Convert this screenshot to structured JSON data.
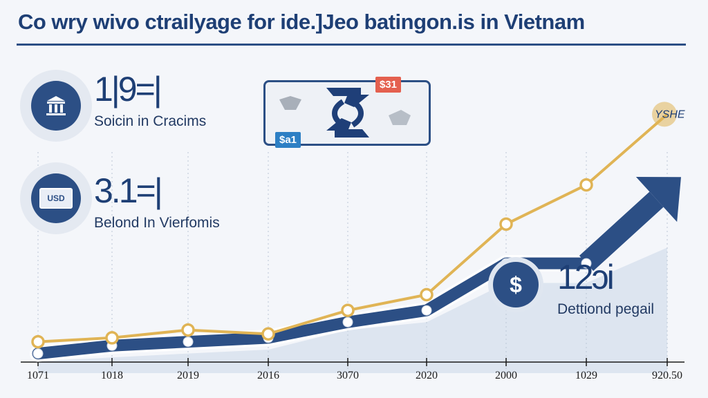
{
  "header": {
    "title": "Co wry wivo ctrailyage for ide.]Jeo batingon.is in Vietnam"
  },
  "stats": [
    {
      "value": "1|9=|",
      "caption": "Soicin in Cracims",
      "icon": "bank-icon"
    },
    {
      "value": "3.1=|",
      "caption": "Belond In Vierfomis",
      "icon": "usd-banknote-icon",
      "icon_text": "USD"
    },
    {
      "value": "12ɔi",
      "caption": "Dettiond pegail",
      "icon": "dollar-coin-icon",
      "icon_text": "$"
    }
  ],
  "exchange_card": {
    "badge_top": "$31",
    "badge_bottom": "$a1",
    "icon": "exchange-arrows-icon"
  },
  "colors": {
    "title": "#1e3f75",
    "navy": "#2c4f85",
    "gold": "#e0b455",
    "area": "#dde5f0",
    "badge_red": "#e4604f",
    "badge_blue": "#2d7fc4"
  },
  "chart_data": {
    "type": "line",
    "title": "Co wry wivo ctrailyage for ide.]Jeo batingon.is in Vietnam",
    "categories": [
      "1071",
      "1018",
      "2019",
      "2016",
      "3070",
      "2020",
      "2000",
      "1029",
      "920.50"
    ],
    "series": [
      {
        "values": [
          1.0,
          1.5,
          2.5,
          2.0,
          5.0,
          7.0,
          16.0,
          21.0,
          30.0
        ]
      },
      {
        "values": [
          -0.5,
          0.5,
          1.0,
          1.5,
          3.5,
          5.0,
          11.0,
          11.0,
          22.0
        ]
      }
    ],
    "area_values": [
      -1.5,
      -1.0,
      -0.5,
      0.0,
      2.5,
      3.5,
      8.5,
      8.5,
      13.0
    ],
    "end_label": "YSHE",
    "ylim": [
      -3,
      34
    ],
    "grid": "vertical-dashed",
    "legend": "none"
  }
}
